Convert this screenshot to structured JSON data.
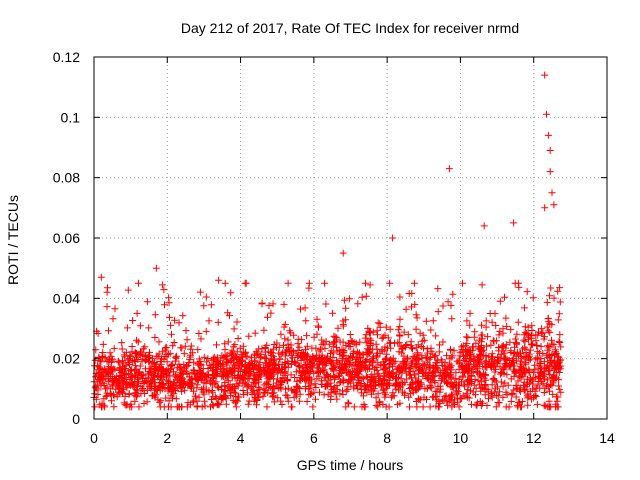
{
  "chart_data": {
    "type": "scatter",
    "title": "Day 212 of 2017, Rate Of TEC Index for receiver nrmd",
    "xlabel": "GPS time / hours",
    "ylabel": "ROTI / TECUs",
    "xlim": [
      0,
      14
    ],
    "ylim": [
      0,
      0.12
    ],
    "xticks": [
      0,
      2,
      4,
      6,
      8,
      10,
      12,
      14
    ],
    "xtick_labels": [
      "0",
      "2",
      "4",
      "6",
      "8",
      "10",
      "12",
      "14"
    ],
    "yticks": [
      0,
      0.02,
      0.04,
      0.06,
      0.08,
      0.1,
      0.12
    ],
    "ytick_labels": [
      "0",
      "0.02",
      "0.04",
      "0.06",
      "0.08",
      "0.1",
      "0.12"
    ],
    "grid": true,
    "marker": "+",
    "color": "#ff0000",
    "series": [
      {
        "name": "ROTI",
        "data_range_hours": [
          0,
          12.75
        ],
        "typical_range": [
          0.005,
          0.03
        ],
        "notable_points": [
          {
            "x": 0.2,
            "y": 0.047
          },
          {
            "x": 1.7,
            "y": 0.05
          },
          {
            "x": 3.4,
            "y": 0.046
          },
          {
            "x": 6.8,
            "y": 0.055
          },
          {
            "x": 8.15,
            "y": 0.06
          },
          {
            "x": 9.7,
            "y": 0.083
          },
          {
            "x": 10.65,
            "y": 0.064
          },
          {
            "x": 11.45,
            "y": 0.065
          },
          {
            "x": 12.3,
            "y": 0.114
          },
          {
            "x": 12.35,
            "y": 0.101
          },
          {
            "x": 12.4,
            "y": 0.094
          },
          {
            "x": 12.45,
            "y": 0.089
          },
          {
            "x": 12.45,
            "y": 0.082
          },
          {
            "x": 12.5,
            "y": 0.075
          },
          {
            "x": 12.55,
            "y": 0.071
          },
          {
            "x": 12.3,
            "y": 0.07
          }
        ]
      }
    ]
  }
}
